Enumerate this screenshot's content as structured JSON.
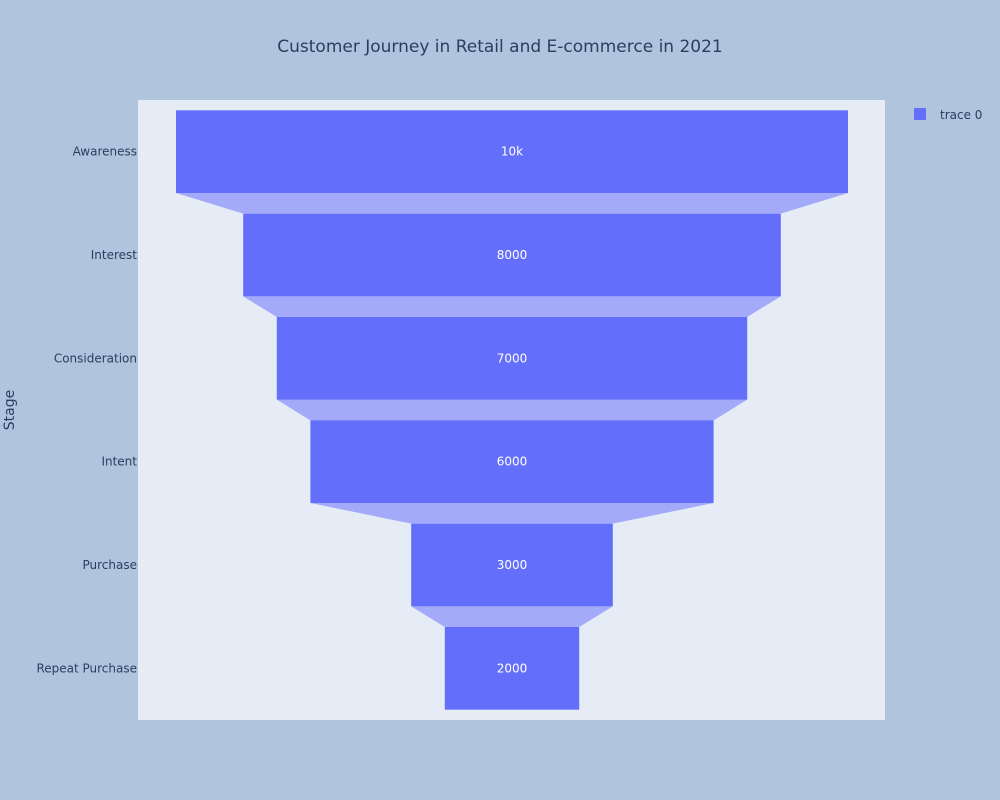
{
  "chart_data": {
    "type": "funnel",
    "title": "Customer Journey in Retail and E-commerce in 2021",
    "ylabel": "Stage",
    "xlabel": "",
    "categories": [
      "Awareness",
      "Interest",
      "Consideration",
      "Intent",
      "Purchase",
      "Repeat Purchase"
    ],
    "values": [
      10000,
      8000,
      7000,
      6000,
      3000,
      2000
    ],
    "text_labels": [
      "10k",
      "8000",
      "7000",
      "6000",
      "3000",
      "2000"
    ],
    "series": [
      {
        "name": "trace 0",
        "values": [
          10000,
          8000,
          7000,
          6000,
          3000,
          2000
        ]
      }
    ],
    "legend": {
      "placement": "top-right",
      "entries": [
        "trace 0"
      ]
    },
    "colors": {
      "page_background": "#b0c4de",
      "plot_background": "#e5ecf6",
      "bar": "#636efa",
      "connector": "#a3aaf9",
      "text": "#2a3f5f",
      "bar_text": "#ffffff"
    }
  }
}
